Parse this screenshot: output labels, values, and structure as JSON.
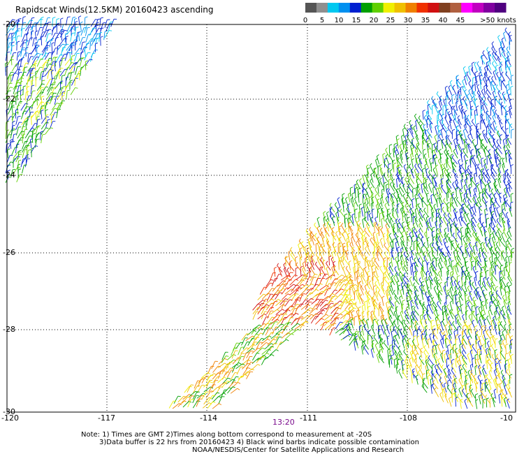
{
  "title": "Rapidscat Winds(12.5KM) 20160423 ascending",
  "colorbar": {
    "labels": [
      "0",
      "5",
      "10",
      "15",
      "20",
      "25",
      "30",
      "35",
      "40",
      "45",
      ">50 knots"
    ],
    "colors": [
      "#555555",
      "#8f8f8f",
      "#00c8f0",
      "#0090f0",
      "#0020d0",
      "#00a000",
      "#60d000",
      "#f0f000",
      "#f0c000",
      "#f08000",
      "#f03000",
      "#d01010",
      "#804020",
      "#b06040",
      "#ff00ff",
      "#c000c0",
      "#8000a0",
      "#500080"
    ]
  },
  "axes": {
    "lon_ticks": [
      "-120",
      "-117",
      "-114",
      "-111",
      "-108",
      "-10"
    ],
    "lat_ticks": [
      "-20",
      "-22",
      "-24",
      "-26",
      "-28",
      "-30"
    ]
  },
  "time_label": "13:20",
  "notes": [
    "Note: 1) Times are GMT 2)Times along bottom correspond to measurement at -20S",
    "3)Data buffer is 22 hrs from 20160423 4) Black wind barbs indicate possible contamination",
    "NOAA/NESDIS/Center for Satellite Applications and Research"
  ]
}
